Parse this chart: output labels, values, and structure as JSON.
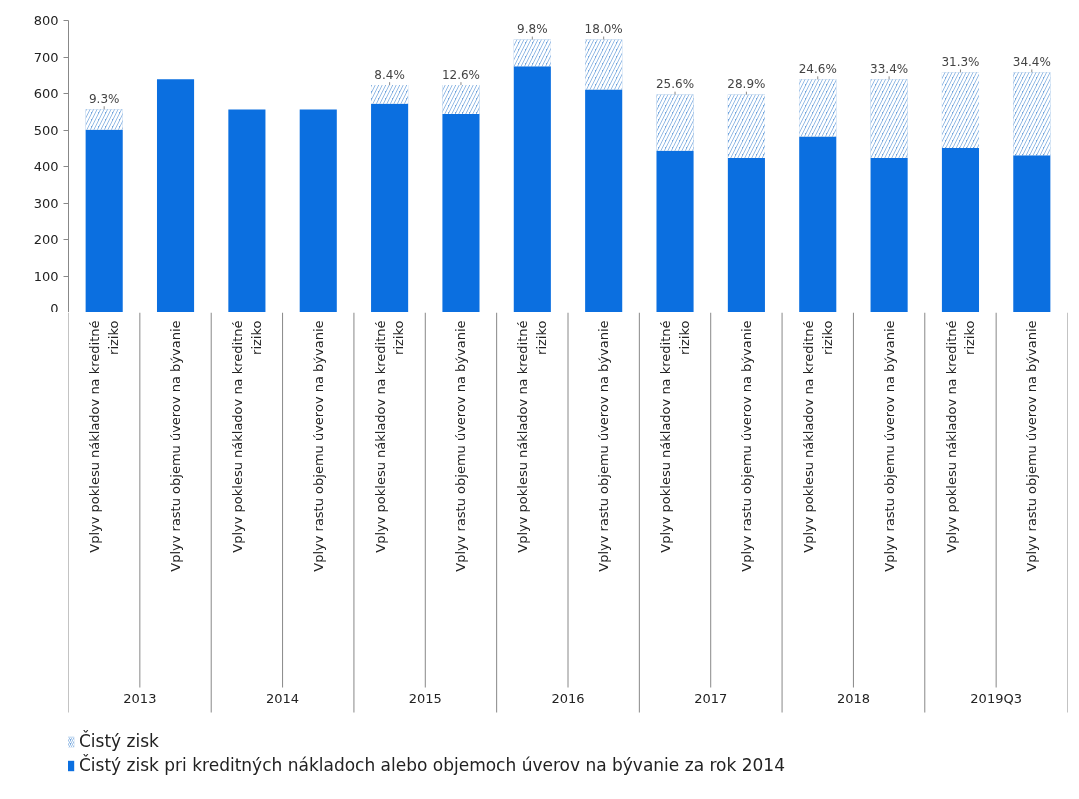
{
  "chart_data": {
    "type": "bar",
    "stacked": true,
    "categories": [
      "Vplyv poklesu nákladov na kreditné riziko",
      "Vplyv rastu objemu úverov na bývanie",
      "Vplyv poklesu nákladov na kreditné riziko",
      "Vplyv rastu objemu úverov na bývanie",
      "Vplyv poklesu nákladov na kreditné riziko",
      "Vplyv rastu objemu úverov na bývanie",
      "Vplyv poklesu nákladov na kreditné riziko",
      "Vplyv rastu objemu úverov na bývanie",
      "Vplyv poklesu nákladov na kreditné riziko",
      "Vplyv rastu objemu úverov na bývanie",
      "Vplyv poklesu nákladov na kreditné riziko",
      "Vplyv rastu objemu úverov na bývanie",
      "Vplyv poklesu nákladov na kreditné riziko",
      "Vplyv rastu objemu úverov na bývanie"
    ],
    "annotations": [
      "2013",
      "2014",
      "2015",
      "2016",
      "2017",
      "2018",
      "2019Q3",
      {
        "text": "9.3%",
        "y": 557
      },
      {
        "text": "8.4%",
        "y": 623
      },
      {
        "text": "12.6%",
        "y": 623
      },
      {
        "text": "9.8%",
        "y": 748
      },
      {
        "text": "18.0%",
        "y": 748
      },
      {
        "text": "25.6%",
        "y": 597
      },
      {
        "text": "28.9%",
        "y": 597
      },
      {
        "text": "24.6%",
        "y": 639
      },
      {
        "text": "33.4%",
        "y": 639
      },
      {
        "text": "31.3%",
        "y": 658
      },
      {
        "text": "34.4%",
        "y": 658
      }
    ],
    "series": [
      {
        "name": "Čistý zisk pri kreditných nákladoch alebo objemoch úverov na bývanie za rok 2014",
        "color": "#0b6fe0",
        "values": [
          501,
          639,
          556,
          556,
          572,
          544,
          675,
          611,
          443,
          423,
          482,
          423,
          451,
          431
        ]
      },
      {
        "name": "Čistý zisk",
        "color": "#6fa3dc",
        "values": [
          56,
          0,
          0,
          0,
          51,
          79,
          73,
          137,
          154,
          174,
          157,
          216,
          207,
          227
        ]
      }
    ],
    "ylim": [
      0,
      800
    ],
    "yticks": [
      0,
      100,
      200,
      300,
      400,
      500,
      600,
      700,
      800
    ],
    "grid": false,
    "legend": "bottom"
  }
}
